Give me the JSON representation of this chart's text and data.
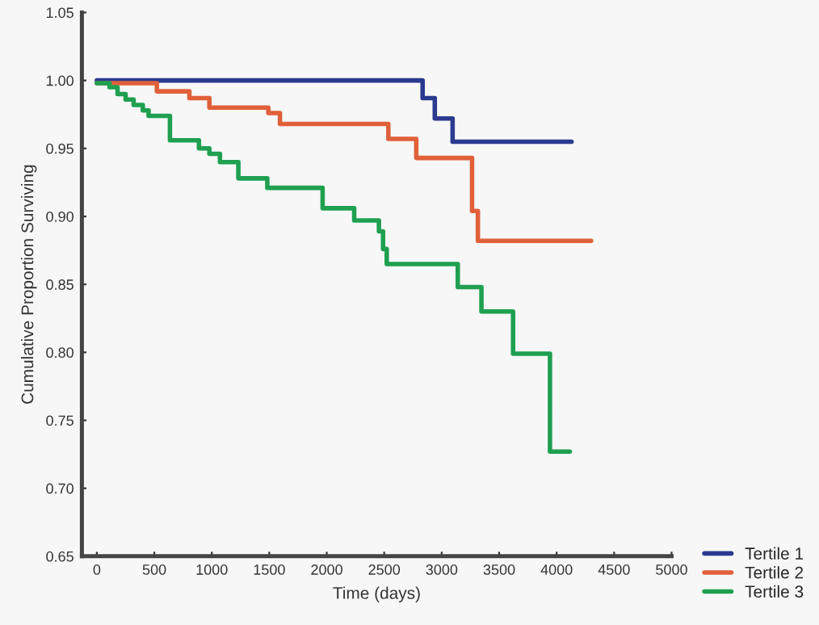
{
  "chart_data": {
    "type": "step",
    "xlabel": "Time (days)",
    "ylabel": "Cumulative Proportion Surviving",
    "xlim": [
      -130,
      5000
    ],
    "xticks": [
      0,
      500,
      1000,
      1500,
      2000,
      2500,
      3000,
      3500,
      4000,
      4500,
      5000
    ],
    "ylim": [
      0.65,
      1.05
    ],
    "yticks": [
      0.65,
      {
        "value": 0.7,
        "label": "0.70"
      },
      0.75,
      {
        "value": 0.8,
        "label": "0.80"
      },
      0.85,
      {
        "value": 0.9,
        "label": "0.90"
      },
      0.95,
      {
        "value": 1.0,
        "label": "1.00"
      },
      1.05
    ],
    "grid": false,
    "legend": "bottom right",
    "marker": "none",
    "line_style": "solid",
    "series": [
      {
        "name": "Tertile 1",
        "color": "#2b3a8f",
        "x": [
          0,
          2834,
          2940,
          3095,
          4130
        ],
        "values": [
          1.0,
          0.987,
          0.972,
          0.955,
          0.955
        ]
      },
      {
        "name": "Tertile 2",
        "color": "#e0603a",
        "x": [
          0,
          522,
          805,
          979,
          1492,
          1593,
          2536,
          2779,
          3264,
          3315,
          4300
        ],
        "values": [
          0.998,
          0.992,
          0.987,
          0.98,
          0.976,
          0.968,
          0.957,
          0.943,
          0.904,
          0.882,
          0.882
        ]
      },
      {
        "name": "Tertile 3",
        "color": "#1fa050",
        "x": [
          0,
          110,
          180,
          250,
          320,
          400,
          450,
          636,
          888,
          979,
          1071,
          1231,
          1483,
          1964,
          2239,
          2454,
          2490,
          2522,
          3140,
          3346,
          3621,
          3942,
          4115
        ],
        "values": [
          0.998,
          0.995,
          0.99,
          0.986,
          0.982,
          0.978,
          0.974,
          0.956,
          0.95,
          0.946,
          0.94,
          0.928,
          0.921,
          0.906,
          0.897,
          0.889,
          0.876,
          0.865,
          0.848,
          0.83,
          0.799,
          0.727,
          0.727
        ]
      }
    ]
  }
}
